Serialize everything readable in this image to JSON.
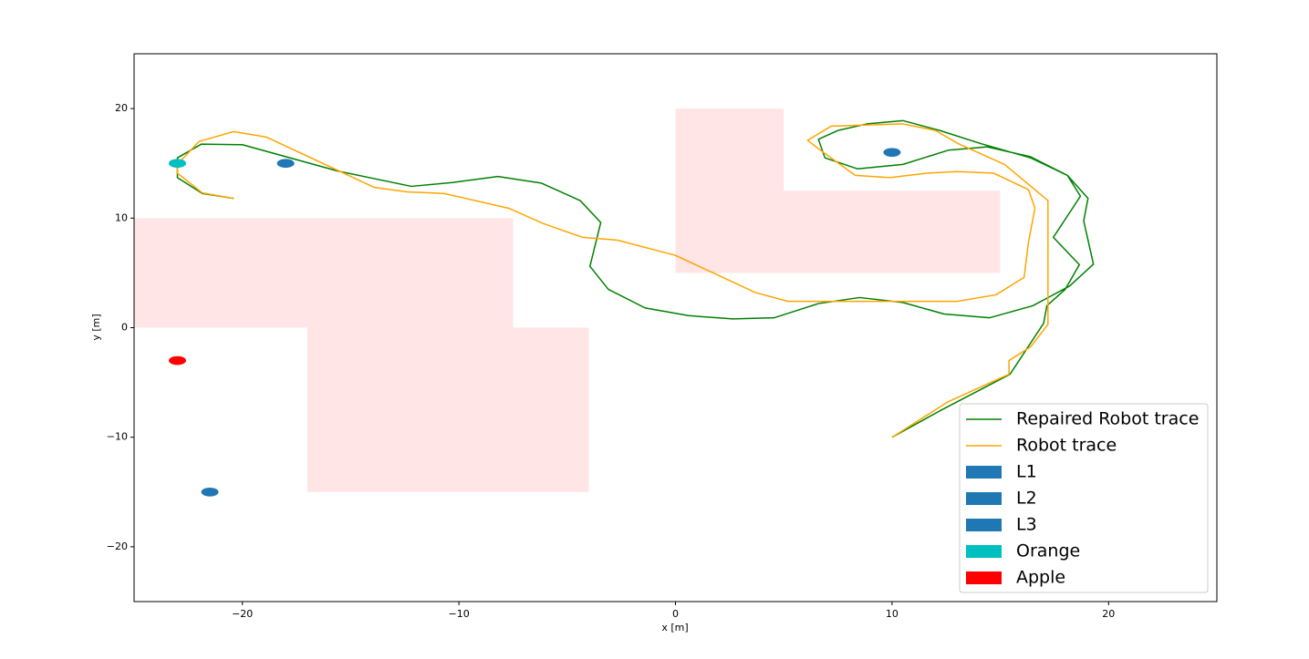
{
  "chart_data": {
    "type": "line",
    "xlabel": "x [m]",
    "ylabel": "y [m]",
    "xlim": [
      -25,
      25
    ],
    "ylim": [
      -25,
      25
    ],
    "xticks": [
      {
        "value": -20,
        "label": "−20"
      },
      {
        "value": -10,
        "label": "−10"
      },
      0,
      10,
      20
    ],
    "yticks": [
      {
        "value": -20,
        "label": "−20"
      },
      {
        "value": -10,
        "label": "−10"
      },
      0,
      10,
      20
    ],
    "legend": "lower right",
    "obstacles": [
      {
        "color": "#ffe5e5",
        "x": [
          -25,
          -7.5
        ],
        "y": [
          0,
          10
        ]
      },
      {
        "color": "#ffe5e5",
        "x": [
          -17,
          -4
        ],
        "y": [
          -15,
          0
        ]
      },
      {
        "color": "#ffe5e5",
        "x": [
          0,
          5
        ],
        "y": [
          5,
          20
        ]
      },
      {
        "color": "#ffe5e5",
        "x": [
          5,
          15
        ],
        "y": [
          5,
          12.5
        ]
      }
    ],
    "series": [
      {
        "name": "Repaired Robot trace",
        "color": "#008000",
        "x": [
          -20.4,
          -21.85,
          -23,
          -23,
          -21.9,
          -20,
          -15.6,
          -12.2,
          -10.3,
          -8.2,
          -6.2,
          -4.4,
          -3.45,
          -3.95,
          -3.1,
          -1.4,
          0.6,
          2.65,
          4.55,
          6.6,
          8.5,
          10.5,
          12.4,
          14.5,
          16.5,
          18.2,
          19.3,
          18.85,
          19.05,
          18.1,
          16.4,
          14.4,
          12.6,
          10.5,
          8.4,
          6.9,
          6.6,
          7.5,
          8.85,
          10.5,
          12.2,
          14.1,
          16.4,
          18.1,
          18.7,
          17.45,
          18.65,
          18.0,
          17.15,
          17.0,
          15.45,
          12.2,
          10
        ],
        "y": [
          11.8,
          12.25,
          13.7,
          15.5,
          16.75,
          16.7,
          14.3,
          12.9,
          13.25,
          13.8,
          13.2,
          11.6,
          9.6,
          5.6,
          3.5,
          1.8,
          1.1,
          0.8,
          0.9,
          2.2,
          2.75,
          2.3,
          1.25,
          0.9,
          2.0,
          3.8,
          5.8,
          9.75,
          11.8,
          13.9,
          15.6,
          16.5,
          16.2,
          14.9,
          14.5,
          15.5,
          17.2,
          18.0,
          18.6,
          18.9,
          18.0,
          16.8,
          15.5,
          13.9,
          12.0,
          8.25,
          5.75,
          3.5,
          2.0,
          0.4,
          -4.25,
          -7.6,
          -10
        ]
      },
      {
        "name": "Robot trace",
        "color": "#ffa500",
        "x": [
          -20.4,
          -21.85,
          -23,
          -23,
          -22,
          -20.4,
          -18.9,
          -13.9,
          -12.4,
          -10.7,
          -7.7,
          -6.1,
          -4.3,
          -2.7,
          0,
          3.7,
          5.2,
          13,
          14.8,
          16.1,
          16.3,
          16.6,
          16.3,
          14.7,
          13,
          11.6,
          9.9,
          8.3,
          6.9,
          6.1,
          7.2,
          10.5,
          12,
          13.05,
          15.2,
          17.2,
          17.2,
          16.4,
          15.4,
          15.4,
          12.6,
          10
        ],
        "y": [
          11.8,
          12.3,
          14.1,
          14.9,
          17,
          17.9,
          17.4,
          12.8,
          12.4,
          12.25,
          10.9,
          9.5,
          8.25,
          8.0,
          6.6,
          3.2,
          2.4,
          2.4,
          3.0,
          4.6,
          7.8,
          10.9,
          12.6,
          14.1,
          14.25,
          14.1,
          13.7,
          13.9,
          15.9,
          17.1,
          18.4,
          18.6,
          18.0,
          16.8,
          14.9,
          11.6,
          0.3,
          -1.75,
          -3,
          -4.25,
          -6.75,
          -10
        ]
      }
    ],
    "patches": [
      {
        "name": "L1",
        "color": "#1f77b4",
        "x": -18,
        "y": 15,
        "radius": 0.4
      },
      {
        "name": "L2",
        "color": "#1f77b4",
        "x": 10,
        "y": 16,
        "radius": 0.4
      },
      {
        "name": "L3",
        "color": "#1f77b4",
        "x": -21.5,
        "y": -15,
        "radius": 0.4
      },
      {
        "name": "Orange",
        "color": "#00bfbf",
        "x": -23,
        "y": 15,
        "radius": 0.4
      },
      {
        "name": "Apple",
        "color": "#ff0000",
        "x": -23,
        "y": -3,
        "radius": 0.4
      }
    ]
  }
}
